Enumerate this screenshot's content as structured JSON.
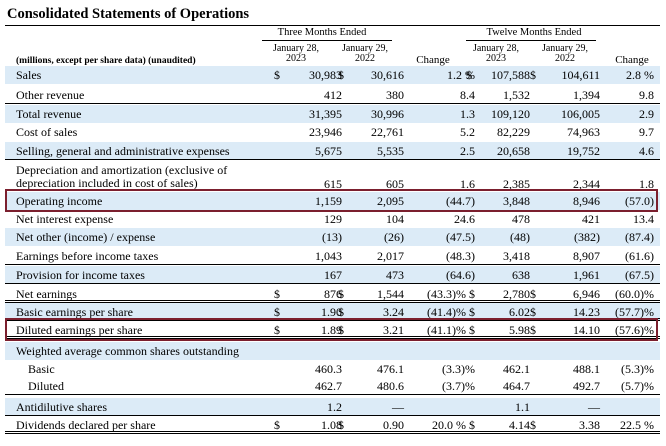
{
  "title": "Consolidated Statements of Operations",
  "header": {
    "units": "(millions, except per share data) (unaudited)",
    "three_months": "Three Months Ended",
    "twelve_months": "Twelve Months Ended",
    "date_a_line1": "January 28,",
    "date_a_line2": "2023",
    "date_b_line1": "January 29,",
    "date_b_line2": "2022",
    "change": "Change"
  },
  "rows": [
    {
      "label": "Sales",
      "q1d": "$",
      "q1": "30,983",
      "q2d": "$",
      "q2": "30,616",
      "qc": "1.2 %",
      "y1d": "$",
      "y1": "107,588",
      "y2d": "$",
      "y2": "104,611",
      "yc": "2.8 %"
    },
    {
      "label": "Other revenue",
      "q1": "412",
      "q2": "380",
      "qc": "8.4",
      "y1": "1,532",
      "y2": "1,394",
      "yc": "9.8"
    },
    {
      "label": "Total revenue",
      "q1": "31,395",
      "q2": "30,996",
      "qc": "1.3",
      "y1": "109,120",
      "y2": "106,005",
      "yc": "2.9"
    },
    {
      "label": "Cost of sales",
      "q1": "23,946",
      "q2": "22,761",
      "qc": "5.2",
      "y1": "82,229",
      "y2": "74,963",
      "yc": "9.7"
    },
    {
      "label": "Selling, general and administrative expenses",
      "q1": "5,675",
      "q2": "5,535",
      "qc": "2.5",
      "y1": "20,658",
      "y2": "19,752",
      "yc": "4.6"
    },
    {
      "label1": "Depreciation and amortization (exclusive of",
      "label2": "depreciation included in cost of sales)",
      "q1": "615",
      "q2": "605",
      "qc": "1.6",
      "y1": "2,385",
      "y2": "2,344",
      "yc": "1.8"
    },
    {
      "label": "Operating income",
      "q1": "1,159",
      "q2": "2,095",
      "qc": "(44.7)",
      "y1": "3,848",
      "y2": "8,946",
      "yc": "(57.0)"
    },
    {
      "label": "Net interest expense",
      "q1": "129",
      "q2": "104",
      "qc": "24.6",
      "y1": "478",
      "y2": "421",
      "yc": "13.4"
    },
    {
      "label": "Net other (income) / expense",
      "q1": "(13)",
      "q2": "(26)",
      "qc": "(47.5)",
      "y1": "(48)",
      "y2": "(382)",
      "yc": "(87.4)"
    },
    {
      "label": "Earnings before income taxes",
      "q1": "1,043",
      "q2": "2,017",
      "qc": "(48.3)",
      "y1": "3,418",
      "y2": "8,907",
      "yc": "(61.6)"
    },
    {
      "label": "Provision for income taxes",
      "q1": "167",
      "q2": "473",
      "qc": "(64.6)",
      "y1": "638",
      "y2": "1,961",
      "yc": "(67.5)"
    },
    {
      "label": "Net earnings",
      "q1d": "$",
      "q1": "876",
      "q2d": "$",
      "q2": "1,544",
      "qc": "(43.3)% $",
      "y1": "2,780",
      "y2d": "$",
      "y2": "6,946",
      "yc": "(60.0)%"
    },
    {
      "label": "Basic earnings per share",
      "q1d": "$",
      "q1": "1.90",
      "q2d": "$",
      "q2": "3.24",
      "qc": "(41.4)% $",
      "y1": "6.02",
      "y2d": "$",
      "y2": "14.23",
      "yc": "(57.7)%"
    },
    {
      "label": "Diluted earnings per share",
      "q1d": "$",
      "q1": "1.89",
      "q2d": "$",
      "q2": "3.21",
      "qc": "(41.1)% $",
      "y1": "5.98",
      "y2d": "$",
      "y2": "14.10",
      "yc": "(57.6)%"
    },
    {
      "label": "Weighted average common shares outstanding"
    },
    {
      "label": "Basic",
      "q1": "460.3",
      "q2": "476.1",
      "qc": "(3.3)%",
      "y1": "462.1",
      "y2": "488.1",
      "yc": "(5.3)%"
    },
    {
      "label": "Diluted",
      "q1": "462.7",
      "q2": "480.6",
      "qc": "(3.7)%",
      "y1": "464.7",
      "y2": "492.7",
      "yc": "(5.7)%"
    },
    {
      "label": "Antidilutive shares",
      "q1": "1.2",
      "q2": "—",
      "qc": "",
      "y1": "1.1",
      "y2": "—",
      "yc": ""
    },
    {
      "label": "Dividends declared per share",
      "q1d": "$",
      "q1": "1.08",
      "q2d": "$",
      "q2": "0.90",
      "qc": "20.0 % $",
      "y1": "4.14",
      "y2d": "$",
      "y2": "3.38",
      "yc": "22.5 %"
    }
  ],
  "highlight_color": "#7b1f2e",
  "shade_color": "#dcebf7"
}
